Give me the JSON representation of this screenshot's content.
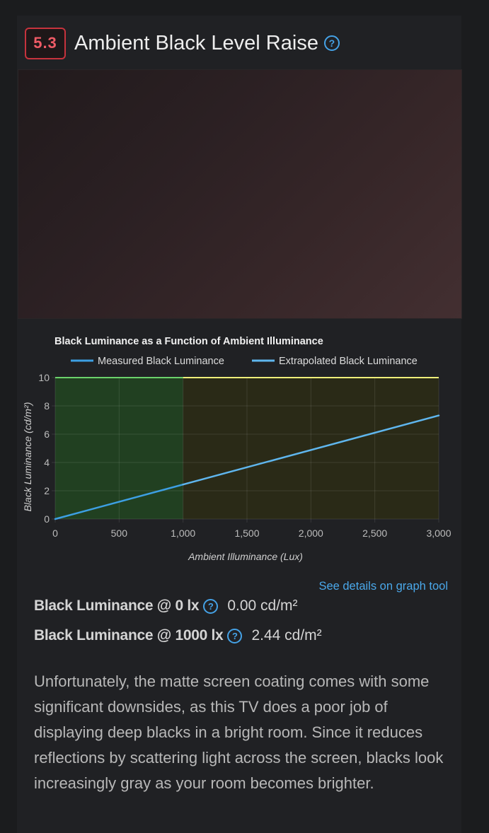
{
  "section": {
    "score": "5.3",
    "title": "Ambient Black Level Raise",
    "help_icon": "question-circle-icon",
    "score_color": "#c6333d"
  },
  "photo": {
    "gradient_colors": [
      "#211a1c",
      "#432f31"
    ]
  },
  "chart_data": {
    "type": "line",
    "title": "Black Luminance as a Function of Ambient Illuminance",
    "xlabel": "Ambient Illuminance (Lux)",
    "ylabel": "Black Luminance (cd/m²)",
    "xlim": [
      0,
      3000
    ],
    "ylim": [
      0,
      10
    ],
    "x_ticks": [
      "0",
      "500",
      "1,000",
      "1,500",
      "2,000",
      "2,500",
      "3,000"
    ],
    "y_ticks": [
      "0",
      "2",
      "4",
      "6",
      "8",
      "10"
    ],
    "grid": true,
    "legend_position": "top",
    "series": [
      {
        "name": "Measured Black Luminance",
        "color": "#3d9fe3",
        "points": [
          [
            0,
            0
          ],
          [
            1000,
            2.44
          ]
        ]
      },
      {
        "name": "Extrapolated Black Luminance",
        "color": "#5fb6ee",
        "points": [
          [
            1000,
            2.44
          ],
          [
            3000,
            7.32
          ]
        ]
      }
    ],
    "regions": [
      {
        "from": 0,
        "to": 1000,
        "color": "#214021"
      },
      {
        "from": 1000,
        "to": 3000,
        "color": "#2a2a17"
      }
    ],
    "reference_lines": [
      {
        "y": 10,
        "from": 0,
        "to": 1000,
        "color": "#6bd26b"
      },
      {
        "y": 10,
        "from": 1000,
        "to": 3000,
        "color": "#eeee7a"
      }
    ]
  },
  "graph_link": "See details on graph tool",
  "metrics": [
    {
      "label": "Black Luminance @ 0 lx",
      "value": "0.00 cd/m²"
    },
    {
      "label": "Black Luminance @ 1000 lx",
      "value": "2.44 cd/m²"
    }
  ],
  "description": "Unfortunately, the matte screen coating comes with some significant downsides, as this TV does a poor job of displaying deep blacks in a bright room. Since it reduces reflections by scattering light across the screen, blacks look increasingly gray as your room becomes brighter."
}
